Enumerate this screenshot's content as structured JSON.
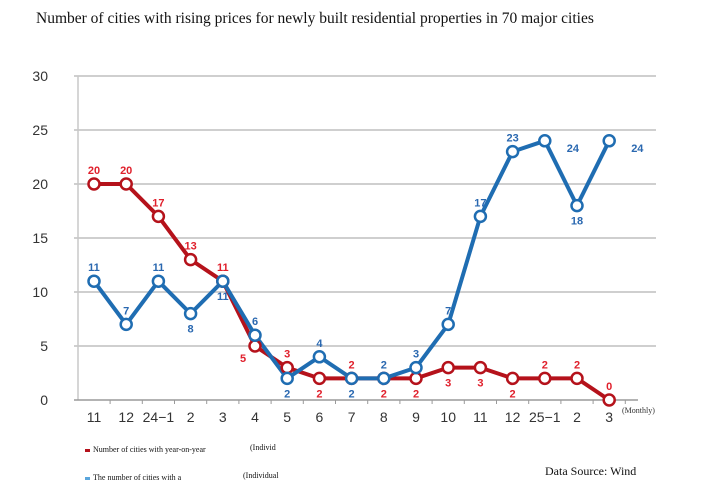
{
  "chart_data": {
    "type": "line",
    "title": "Number of cities with rising prices for newly built residential properties in 70 major cities",
    "xlabel": "",
    "x_unit_label": "(Monthly)",
    "ylabel": "",
    "ylim": [
      0,
      30
    ],
    "yticks": [
      0,
      5,
      10,
      15,
      20,
      25,
      30
    ],
    "grid": true,
    "categories": [
      "11",
      "12",
      "24−1",
      "2",
      "3",
      "4",
      "5",
      "6",
      "7",
      "8",
      "9",
      "10",
      "11",
      "12",
      "25−1",
      "2",
      "3"
    ],
    "series": [
      {
        "name": "Number of cities with year-on-year",
        "name_suffix": "(Individ",
        "color": "#b5121b",
        "label_color": "#e0202c",
        "values": [
          20,
          20,
          17,
          13,
          11,
          5,
          3,
          2,
          2,
          2,
          2,
          3,
          3,
          2,
          2,
          2,
          0
        ],
        "label_pos": [
          "above",
          "above",
          "above",
          "above",
          "above",
          "left",
          "above",
          "below",
          "above",
          "below",
          "below",
          "below",
          "below",
          "below",
          "above",
          "above",
          "above"
        ]
      },
      {
        "name": "The number of cities with a",
        "name_suffix": "(Individual",
        "color": "#1f6db2",
        "label_color": "#2a68b0",
        "values": [
          11,
          7,
          11,
          8,
          11,
          6,
          2,
          4,
          2,
          2,
          3,
          7,
          17,
          23,
          24,
          18,
          24
        ],
        "label_pos": [
          "above",
          "above",
          "above",
          "below",
          "below",
          "above",
          "below",
          "above",
          "below",
          "above",
          "above",
          "above",
          "above",
          "above",
          "right",
          "below",
          "right"
        ]
      }
    ],
    "legend_position": "bottom-left",
    "source": "Data Source: Wind"
  }
}
